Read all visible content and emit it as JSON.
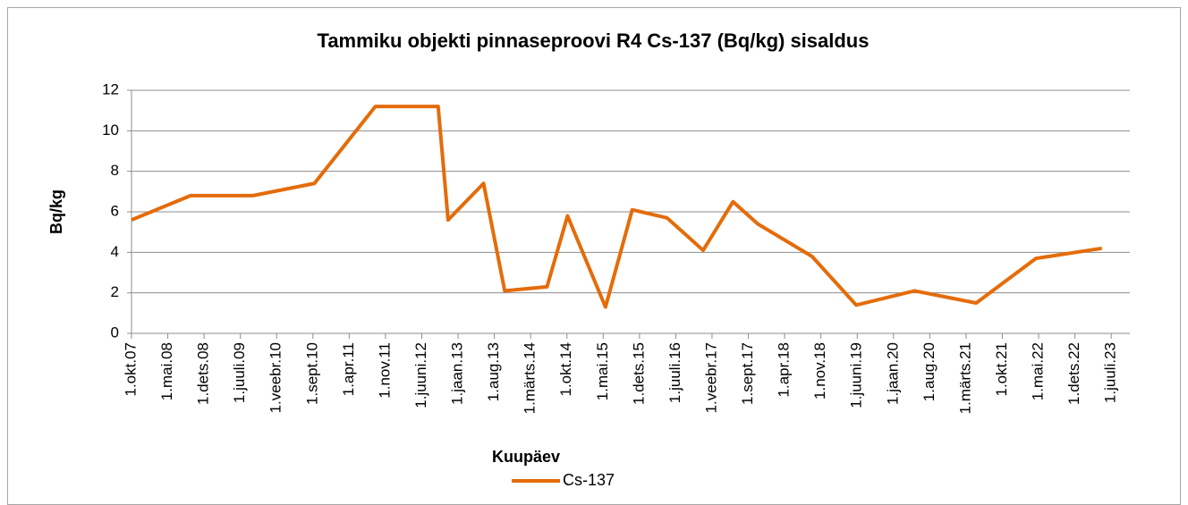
{
  "chart_data": {
    "type": "line",
    "title": "Tammiku objekti pinnaseproovi R4 Cs-137 (Bq/kg) sisaldus",
    "xlabel": "Kuupäev",
    "ylabel": "Bq/kg",
    "x": [
      2007.75,
      2008.7,
      2009.7,
      2010.69,
      2011.67,
      2012.68,
      2012.84,
      2013.41,
      2013.75,
      2014.43,
      2014.76,
      2015.37,
      2015.8,
      2016.36,
      2016.94,
      2017.42,
      2017.82,
      2018.69,
      2019.4,
      2020.34,
      2021.33,
      2022.29,
      2023.35
    ],
    "series": [
      {
        "name": "Cs-137",
        "color": "#e46c0a",
        "values": [
          5.6,
          6.8,
          6.8,
          7.4,
          11.2,
          11.2,
          5.6,
          7.4,
          2.1,
          2.3,
          5.8,
          1.3,
          6.1,
          5.7,
          4.1,
          6.5,
          5.4,
          3.8,
          1.4,
          2.1,
          1.5,
          3.7,
          4.2
        ]
      }
    ],
    "xlim": [
      2007.75,
      2023.8
    ],
    "xticks": [
      {
        "value": 2007.75,
        "label": "1.okt.07"
      },
      {
        "value": 2008.333,
        "label": "1.mai.08"
      },
      {
        "value": 2008.917,
        "label": "1.dets.08"
      },
      {
        "value": 2009.5,
        "label": "1.juuli.09"
      },
      {
        "value": 2010.083,
        "label": "1.veebr.10"
      },
      {
        "value": 2010.667,
        "label": "1.sept.10"
      },
      {
        "value": 2011.25,
        "label": "1.apr.11"
      },
      {
        "value": 2011.833,
        "label": "1.nov.11"
      },
      {
        "value": 2012.417,
        "label": "1.juuni.12"
      },
      {
        "value": 2013.0,
        "label": "1.jaan.13"
      },
      {
        "value": 2013.583,
        "label": "1.aug.13"
      },
      {
        "value": 2014.167,
        "label": "1.märts.14"
      },
      {
        "value": 2014.75,
        "label": "1.okt.14"
      },
      {
        "value": 2015.333,
        "label": "1.mai.15"
      },
      {
        "value": 2015.917,
        "label": "1.dets.15"
      },
      {
        "value": 2016.5,
        "label": "1.juuli.16"
      },
      {
        "value": 2017.083,
        "label": "1.veebr.17"
      },
      {
        "value": 2017.667,
        "label": "1.sept.17"
      },
      {
        "value": 2018.25,
        "label": "1.apr.18"
      },
      {
        "value": 2018.833,
        "label": "1.nov.18"
      },
      {
        "value": 2019.417,
        "label": "1.juuni.19"
      },
      {
        "value": 2020.0,
        "label": "1.jaan.20"
      },
      {
        "value": 2020.583,
        "label": "1.aug.20"
      },
      {
        "value": 2021.167,
        "label": "1.märts.21"
      },
      {
        "value": 2021.75,
        "label": "1.okt.21"
      },
      {
        "value": 2022.333,
        "label": "1.mai.22"
      },
      {
        "value": 2022.917,
        "label": "1.dets.22"
      },
      {
        "value": 2023.5,
        "label": "1.juuli.23"
      }
    ],
    "ylim": [
      0,
      12
    ],
    "yticks": [
      0,
      2,
      4,
      6,
      8,
      10,
      12
    ],
    "grid": true,
    "legend": "bottom"
  }
}
